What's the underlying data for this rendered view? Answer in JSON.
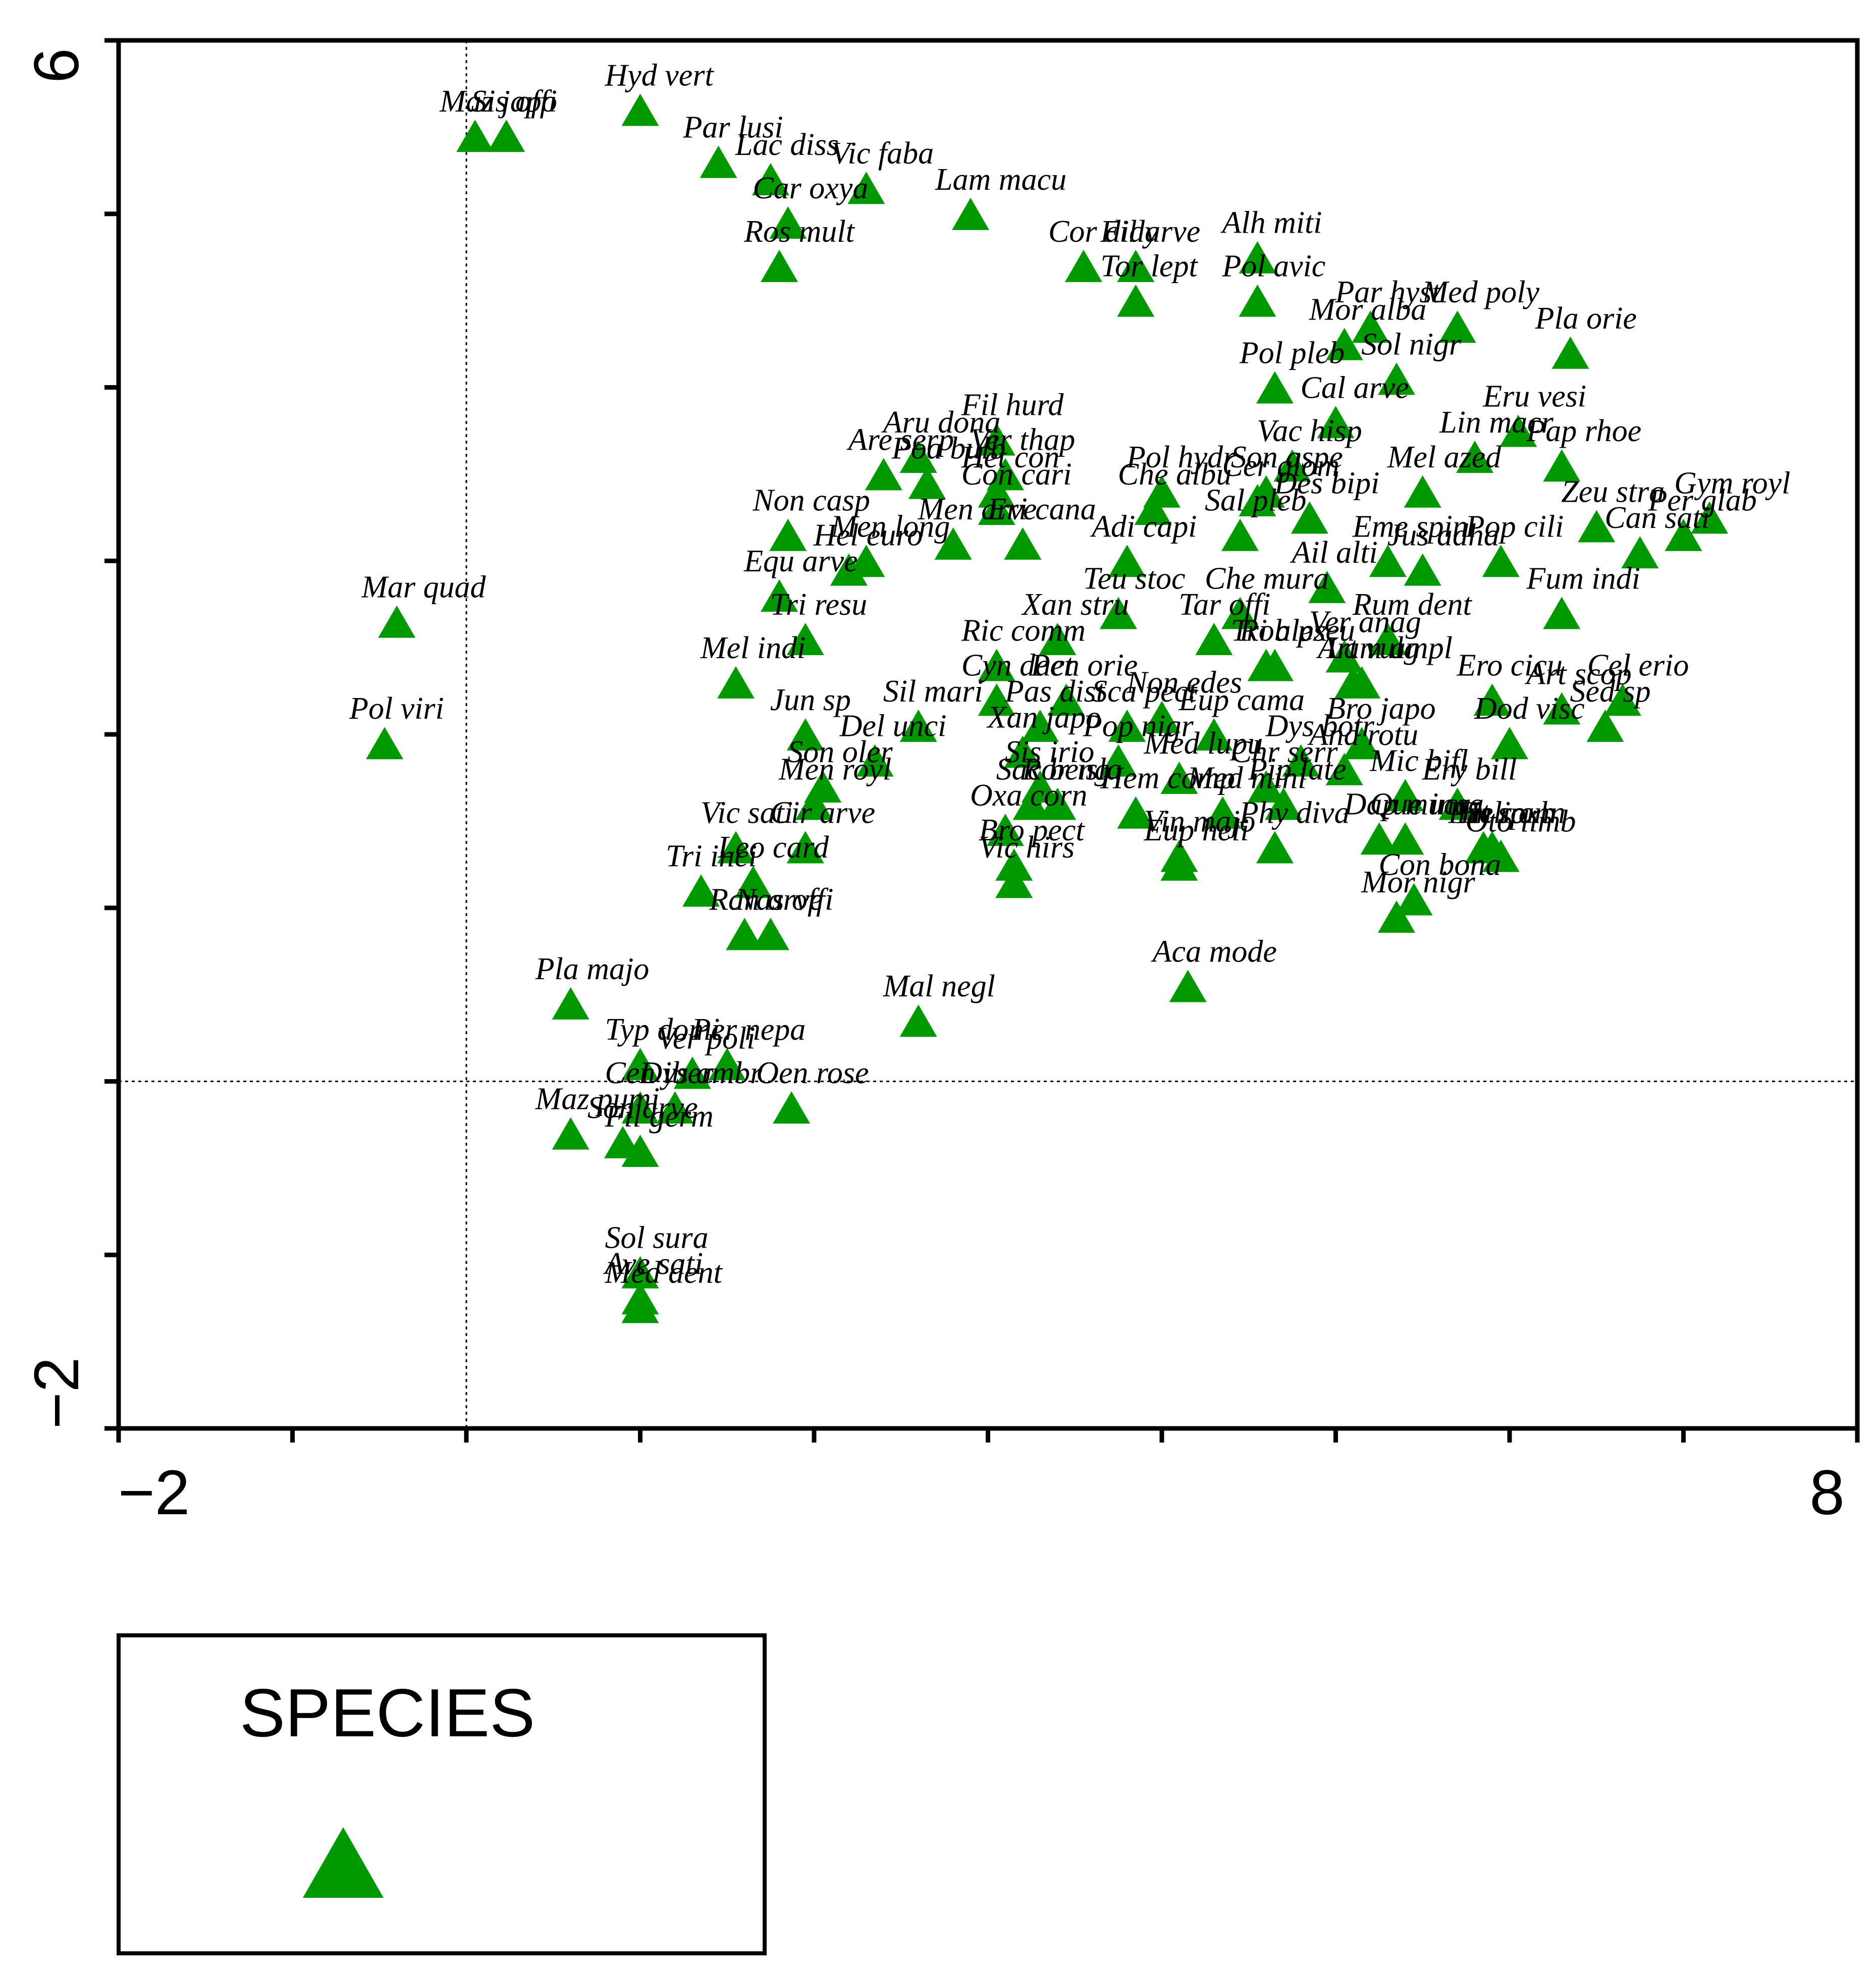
{
  "chart_data": {
    "type": "scatter",
    "title": "",
    "xlabel": "",
    "ylabel": "",
    "xlim": [
      -2,
      8
    ],
    "ylim": [
      -2,
      6
    ],
    "x_tick_labels": [
      "−2",
      "8"
    ],
    "y_tick_labels": [
      "6",
      "−2"
    ],
    "reference_lines": {
      "x": 0,
      "y": 0
    },
    "marker_color": "#009900",
    "legend": {
      "title": "SPECIES",
      "placement": "bottom-left"
    },
    "series": [
      {
        "name": "SPECIES",
        "points": [
          {
            "label": "Maz japo",
            "x": 0.05,
            "y": 5.45
          },
          {
            "label": "Sis offi",
            "x": 0.23,
            "y": 5.45
          },
          {
            "label": "Hyd vert",
            "x": 1.0,
            "y": 5.6
          },
          {
            "label": "Par lusi",
            "x": 1.45,
            "y": 5.3
          },
          {
            "label": "Lac diss",
            "x": 1.75,
            "y": 5.2
          },
          {
            "label": "Vic faba",
            "x": 2.3,
            "y": 5.15
          },
          {
            "label": "Car oxya",
            "x": 1.85,
            "y": 4.95
          },
          {
            "label": "Lam macu",
            "x": 2.9,
            "y": 5.0
          },
          {
            "label": "Ros mult",
            "x": 1.8,
            "y": 4.7
          },
          {
            "label": "Cor didy",
            "x": 3.55,
            "y": 4.7
          },
          {
            "label": "Fil arve",
            "x": 3.85,
            "y": 4.7
          },
          {
            "label": "Tor lept",
            "x": 3.85,
            "y": 4.5
          },
          {
            "label": "Alh miti",
            "x": 4.55,
            "y": 4.75
          },
          {
            "label": "Pol avic",
            "x": 4.55,
            "y": 4.5
          },
          {
            "label": "Par hyst",
            "x": 5.2,
            "y": 4.35
          },
          {
            "label": "Mor alba",
            "x": 5.05,
            "y": 4.25
          },
          {
            "label": "Med poly",
            "x": 5.7,
            "y": 4.35
          },
          {
            "label": "Pla orie",
            "x": 6.35,
            "y": 4.2
          },
          {
            "label": "Pol pleb",
            "x": 4.65,
            "y": 4.0
          },
          {
            "label": "Sol nigr",
            "x": 5.35,
            "y": 4.05
          },
          {
            "label": "Cal arve",
            "x": 5.0,
            "y": 3.8
          },
          {
            "label": "Eru vesi",
            "x": 6.05,
            "y": 3.75
          },
          {
            "label": "Lin macr",
            "x": 5.8,
            "y": 3.6
          },
          {
            "label": "Vac hisp",
            "x": 4.75,
            "y": 3.55
          },
          {
            "label": "Aru dona",
            "x": 2.6,
            "y": 3.6
          },
          {
            "label": "Fil hurd",
            "x": 3.05,
            "y": 3.7
          },
          {
            "label": "Ver thap",
            "x": 3.1,
            "y": 3.5
          },
          {
            "label": "Are serp",
            "x": 2.4,
            "y": 3.5
          },
          {
            "label": "Poa bulb",
            "x": 2.65,
            "y": 3.45
          },
          {
            "label": "Het con",
            "x": 3.05,
            "y": 3.4
          },
          {
            "label": "Con cari",
            "x": 3.05,
            "y": 3.3
          },
          {
            "label": "Pol hydr",
            "x": 4.0,
            "y": 3.4
          },
          {
            "label": "Son aspe",
            "x": 4.6,
            "y": 3.4
          },
          {
            "label": "Pap rhoe",
            "x": 6.3,
            "y": 3.55
          },
          {
            "label": "Per glab",
            "x": 7.0,
            "y": 3.15
          },
          {
            "label": "Non casp",
            "x": 1.85,
            "y": 3.15
          },
          {
            "label": "Men arve",
            "x": 2.8,
            "y": 3.1
          },
          {
            "label": "Cer glom",
            "x": 4.55,
            "y": 3.35
          },
          {
            "label": "Des bipi",
            "x": 4.85,
            "y": 3.25
          },
          {
            "label": "Pop cili",
            "x": 5.95,
            "y": 3.0
          },
          {
            "label": "Zeu stra",
            "x": 6.5,
            "y": 3.2
          },
          {
            "label": "Mel azed",
            "x": 5.5,
            "y": 3.4
          },
          {
            "label": "Hel euro",
            "x": 2.2,
            "y": 2.95
          },
          {
            "label": "Men long",
            "x": 2.3,
            "y": 3.0
          },
          {
            "label": "Eri cana",
            "x": 3.2,
            "y": 3.1
          },
          {
            "label": "Che albu",
            "x": 3.95,
            "y": 3.3
          },
          {
            "label": "Sal pleb",
            "x": 4.45,
            "y": 3.15
          },
          {
            "label": "Can sati",
            "x": 6.75,
            "y": 3.05
          },
          {
            "label": "Gym royl",
            "x": 7.15,
            "y": 3.25
          },
          {
            "label": "Equ arve",
            "x": 1.8,
            "y": 2.8
          },
          {
            "label": "Adi capi",
            "x": 3.8,
            "y": 3.0
          },
          {
            "label": "Eme spin",
            "x": 5.3,
            "y": 3.0
          },
          {
            "label": "Jus adha",
            "x": 5.5,
            "y": 2.95
          },
          {
            "label": "Ail alti",
            "x": 4.95,
            "y": 2.85
          },
          {
            "label": "Fum indi",
            "x": 6.3,
            "y": 2.7
          },
          {
            "label": "Tri resu",
            "x": 1.95,
            "y": 2.55
          },
          {
            "label": "Teu stoc",
            "x": 3.75,
            "y": 2.7
          },
          {
            "label": "Che mura",
            "x": 4.45,
            "y": 2.7
          },
          {
            "label": "Rob pseu",
            "x": 4.65,
            "y": 2.4
          },
          {
            "label": "Rum dent",
            "x": 5.3,
            "y": 2.55
          },
          {
            "label": "Lam ampl",
            "x": 5.15,
            "y": 2.3
          },
          {
            "label": "Cel erio",
            "x": 6.65,
            "y": 2.2
          },
          {
            "label": "Mel indi",
            "x": 1.55,
            "y": 2.3
          },
          {
            "label": "Ric comm",
            "x": 3.05,
            "y": 2.4
          },
          {
            "label": "Xan stru",
            "x": 3.4,
            "y": 2.55
          },
          {
            "label": "Tar offi",
            "x": 4.3,
            "y": 2.55
          },
          {
            "label": "Cyn dact",
            "x": 3.05,
            "y": 2.2
          },
          {
            "label": "Pen orie",
            "x": 3.45,
            "y": 2.2
          },
          {
            "label": "Tri alex",
            "x": 4.6,
            "y": 2.4
          },
          {
            "label": "Ver anag",
            "x": 5.05,
            "y": 2.45
          },
          {
            "label": "Jun sp",
            "x": 1.95,
            "y": 2.0
          },
          {
            "label": "Sil mari",
            "x": 2.6,
            "y": 2.05
          },
          {
            "label": "Art vulg",
            "x": 5.1,
            "y": 2.3
          },
          {
            "label": "Ero cicu",
            "x": 5.9,
            "y": 2.2
          },
          {
            "label": "Art scop",
            "x": 6.3,
            "y": 2.15
          },
          {
            "label": "Sed sp",
            "x": 6.55,
            "y": 2.05
          },
          {
            "label": "Pas dist",
            "x": 3.3,
            "y": 2.05
          },
          {
            "label": "Sca pect",
            "x": 3.8,
            "y": 2.05
          },
          {
            "label": "Non edes",
            "x": 4.0,
            "y": 2.1
          },
          {
            "label": "Eup cama",
            "x": 4.3,
            "y": 2.0
          },
          {
            "label": "Del unci",
            "x": 2.35,
            "y": 1.85
          },
          {
            "label": "Xan japo",
            "x": 3.2,
            "y": 1.9
          },
          {
            "label": "Pop nigr",
            "x": 3.75,
            "y": 1.85
          },
          {
            "label": "Dys botr",
            "x": 4.8,
            "y": 1.85
          },
          {
            "label": "Bro japo",
            "x": 5.15,
            "y": 1.95
          },
          {
            "label": "Dod visc",
            "x": 6.0,
            "y": 1.95
          },
          {
            "label": "Sis irio",
            "x": 3.3,
            "y": 1.7
          },
          {
            "label": "Med lupu",
            "x": 4.1,
            "y": 1.75
          },
          {
            "label": "Chr serr",
            "x": 4.6,
            "y": 1.7
          },
          {
            "label": "And rotu",
            "x": 5.05,
            "y": 1.8
          },
          {
            "label": "Son oler",
            "x": 2.05,
            "y": 1.7
          },
          {
            "label": "Ror isla",
            "x": 3.4,
            "y": 1.6
          },
          {
            "label": "Hem comp",
            "x": 3.85,
            "y": 1.55
          },
          {
            "label": "Pip late",
            "x": 4.7,
            "y": 1.6
          },
          {
            "label": "Mic bifl",
            "x": 5.4,
            "y": 1.65
          },
          {
            "label": "Ery bill",
            "x": 5.7,
            "y": 1.6
          },
          {
            "label": "Oxa corn",
            "x": 3.1,
            "y": 1.45
          },
          {
            "label": "Phy diva",
            "x": 4.65,
            "y": 1.35
          },
          {
            "label": "Que inca",
            "x": 5.4,
            "y": 1.4
          },
          {
            "label": "Heli ann",
            "x": 5.9,
            "y": 1.35
          },
          {
            "label": "Oto limb",
            "x": 5.95,
            "y": 1.3
          },
          {
            "label": "Men royl",
            "x": 2.0,
            "y": 1.6
          },
          {
            "label": "Sac beng",
            "x": 3.25,
            "y": 1.6
          },
          {
            "label": "Med mini",
            "x": 4.35,
            "y": 1.55
          },
          {
            "label": "Vic sati",
            "x": 1.55,
            "y": 1.35
          },
          {
            "label": "Cir arve",
            "x": 1.95,
            "y": 1.35
          },
          {
            "label": "Bro pect",
            "x": 3.15,
            "y": 1.25
          },
          {
            "label": "Vin majo",
            "x": 4.1,
            "y": 1.3
          },
          {
            "label": "Dap mucr",
            "x": 5.25,
            "y": 1.4
          },
          {
            "label": "Tit sp",
            "x": 5.9,
            "y": 1.35
          },
          {
            "label": "Tri inci",
            "x": 1.35,
            "y": 1.1
          },
          {
            "label": "Vic hirs",
            "x": 3.15,
            "y": 1.15
          },
          {
            "label": "Pin roxb",
            "x": 5.85,
            "y": 1.35
          },
          {
            "label": "Leo card",
            "x": 1.65,
            "y": 1.15
          },
          {
            "label": "Ran arve",
            "x": 1.6,
            "y": 0.85
          },
          {
            "label": "Eup heli",
            "x": 4.1,
            "y": 1.25
          },
          {
            "label": "Con bona",
            "x": 5.45,
            "y": 1.05
          },
          {
            "label": "Mor nigr",
            "x": 5.35,
            "y": 0.95
          },
          {
            "label": "Nas offi",
            "x": 1.75,
            "y": 0.85
          },
          {
            "label": "Pla majo",
            "x": 0.6,
            "y": 0.45
          },
          {
            "label": "Aca mode",
            "x": 4.15,
            "y": 0.55
          },
          {
            "label": "Mal negl",
            "x": 2.6,
            "y": 0.35
          },
          {
            "label": "Typ domi",
            "x": 1.0,
            "y": 0.1
          },
          {
            "label": "Ver poli",
            "x": 1.3,
            "y": 0.05
          },
          {
            "label": "Per nepa",
            "x": 1.5,
            "y": 0.1
          },
          {
            "label": "Cen iber",
            "x": 1.0,
            "y": -0.15
          },
          {
            "label": "Dys ambr",
            "x": 1.2,
            "y": -0.15
          },
          {
            "label": "Oen rose",
            "x": 1.87,
            "y": -0.15
          },
          {
            "label": "Maz pumi",
            "x": 0.6,
            "y": -0.3
          },
          {
            "label": "Son arve",
            "x": 0.9,
            "y": -0.35
          },
          {
            "label": "Fil germ",
            "x": 1.0,
            "y": -0.4
          },
          {
            "label": "Sol sura",
            "x": 1.0,
            "y": -1.1
          },
          {
            "label": "Ave sati",
            "x": 1.0,
            "y": -1.25
          },
          {
            "label": "Med dent",
            "x": 1.0,
            "y": -1.3
          },
          {
            "label": "Mar quad",
            "x": -0.4,
            "y": 2.65
          },
          {
            "label": "Pol viri",
            "x": -0.47,
            "y": 1.95
          }
        ]
      }
    ]
  }
}
